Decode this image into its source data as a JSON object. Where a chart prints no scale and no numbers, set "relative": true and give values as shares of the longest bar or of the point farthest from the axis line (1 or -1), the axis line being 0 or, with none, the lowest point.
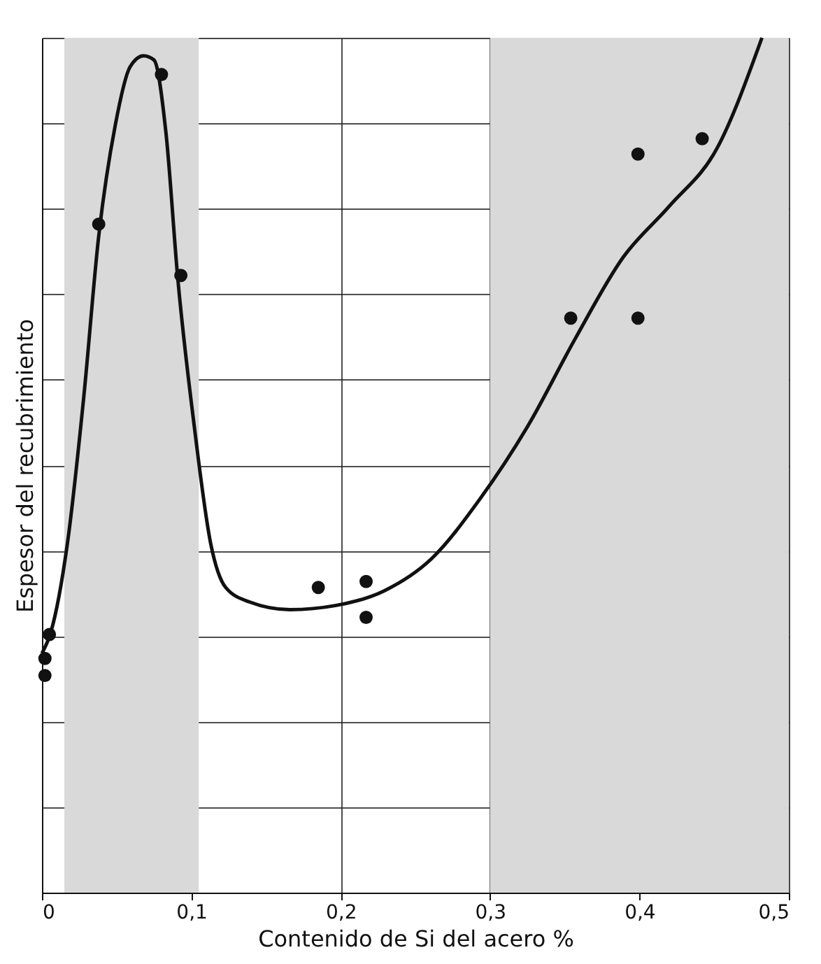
{
  "chart_data": {
    "type": "scatter",
    "xlabel": "Contenido de Si del acero %",
    "ylabel": "Espesor del recubrimiento",
    "relative": true,
    "xlim": [
      0,
      0.5
    ],
    "xticks": [
      0,
      {
        "value": 0.1,
        "label": "0,1"
      },
      {
        "value": 0.2,
        "label": "0,2"
      },
      {
        "value": 0.3,
        "label": "0,3"
      },
      {
        "value": 0.4,
        "label": "0,4"
      },
      {
        "value": 0.5,
        "label": "0,5"
      }
    ],
    "grid": true,
    "bands": [
      {
        "axis": "x",
        "from": 0.015,
        "to": 0.105,
        "color": "#d9d9d9"
      },
      {
        "axis": "x",
        "from": 0.3,
        "to": 0.5,
        "color": "#d9d9d9"
      }
    ],
    "series": [
      {
        "marker": "circle",
        "color": "#111111",
        "x": [
          0.002,
          0.002,
          0.005,
          0.038,
          0.08,
          0.093,
          0.185,
          0.217,
          0.217,
          0.354,
          0.399,
          0.399,
          0.442
        ],
        "values": [
          0.274,
          0.254,
          0.302,
          0.782,
          0.957,
          0.722,
          0.357,
          0.364,
          0.322,
          0.672,
          0.864,
          0.672,
          0.882
        ]
      },
      {
        "type": "line",
        "marker": "none",
        "line_style": "solid",
        "color": "#111111",
        "x": [
          0,
          0.006,
          0.017,
          0.028,
          0.038,
          0.049,
          0.059,
          0.068,
          0.075,
          0.083,
          0.091,
          0.102,
          0.113,
          0.123,
          0.139,
          0.166,
          0.197,
          0.229,
          0.261,
          0.293,
          0.325,
          0.357,
          0.389,
          0.42,
          0.452,
          0.482
        ],
        "values": [
          0.28,
          0.305,
          0.408,
          0.58,
          0.768,
          0.897,
          0.966,
          0.979,
          0.974,
          0.889,
          0.717,
          0.545,
          0.408,
          0.357,
          0.34,
          0.331,
          0.336,
          0.353,
          0.391,
          0.46,
          0.545,
          0.648,
          0.743,
          0.803,
          0.871,
          1.0
        ]
      }
    ]
  }
}
